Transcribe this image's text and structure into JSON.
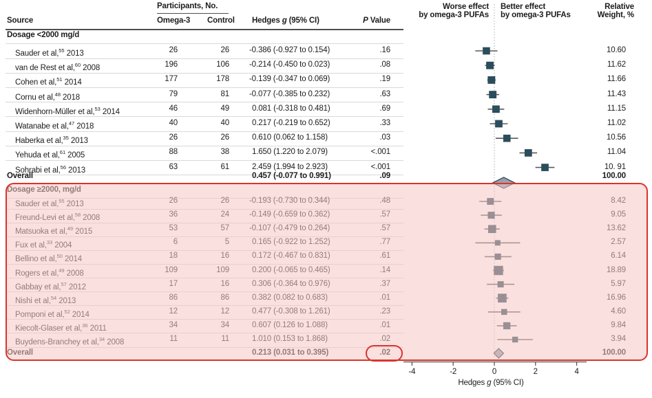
{
  "chart_data": {
    "type": "scatter",
    "variant": "forest-plot",
    "header": {
      "source": "Source",
      "participants": "Participants, No.",
      "omega3": "Omega-3",
      "control": "Control",
      "hedges": {
        "pre": "Hedges ",
        "it": "g",
        "post": " (95% CI)"
      },
      "pvalue": {
        "it": "P",
        "post": " Value"
      },
      "worse1": "Worse effect",
      "worse2": "by omega-3 PUFAs",
      "better1": "Better effect",
      "better2": "by omega-3 PUFAs",
      "relative1": "Relative",
      "relative2": "Weight, %"
    },
    "axis": {
      "ticks": [
        -4,
        -2,
        0,
        2,
        4
      ],
      "xlim": [
        -4.4,
        4.6
      ],
      "zero_line": "dotted",
      "title": {
        "pre": "Hedges ",
        "it": "g",
        "post": " (95% CI)"
      }
    },
    "colors": {
      "square": "#2b4d5c",
      "ci_line": "#5a5a5a",
      "diamond_fill": "#9aa0ab",
      "diamond_stroke": "#31505e",
      "highlight_red": "#d8352c",
      "separator": "#d9d9d9",
      "text": "#1c1c1c"
    },
    "groups": [
      {
        "label": "Dosage <2000 mg/d",
        "rows": [
          {
            "source": "Sauder et al,",
            "ref": "55",
            "year": "2013",
            "omega3": "26",
            "control": "26",
            "hedges": "-0.386 (-0.927 to 0.154)",
            "p": ".16",
            "weight": "10.60",
            "g": -0.386,
            "lo": -0.927,
            "hi": 0.154,
            "w": 10.6
          },
          {
            "source": "van de Rest et al,",
            "ref": "60",
            "year": "2008",
            "omega3": "196",
            "control": "106",
            "hedges": "-0.214 (-0.450 to 0.023)",
            "p": ".08",
            "weight": "11.62",
            "g": -0.214,
            "lo": -0.45,
            "hi": 0.023,
            "w": 11.62
          },
          {
            "source": "Cohen et al,",
            "ref": "51",
            "year": "2014",
            "omega3": "177",
            "control": "178",
            "hedges": "-0.139 (-0.347 to 0.069)",
            "p": ".19",
            "weight": "11.66",
            "g": -0.139,
            "lo": -0.347,
            "hi": 0.069,
            "w": 11.66
          },
          {
            "source": "Cornu et al,",
            "ref": "48",
            "year": "2018",
            "omega3": "79",
            "control": "81",
            "hedges": "-0.077 (-0.385 to 0.232)",
            "p": ".63",
            "weight": "11.43",
            "g": -0.077,
            "lo": -0.385,
            "hi": 0.232,
            "w": 11.43
          },
          {
            "source": "Widenhorn-Müller et al,",
            "ref": "53",
            "year": "2014",
            "omega3": "46",
            "control": "49",
            "hedges": "0.081 (-0.318 to 0.481)",
            "p": ".69",
            "weight": "11.15",
            "g": 0.081,
            "lo": -0.318,
            "hi": 0.481,
            "w": 11.15
          },
          {
            "source": "Watanabe et al,",
            "ref": "47",
            "year": "2018",
            "omega3": "40",
            "control": "40",
            "hedges": "0.217 (-0.219 to 0.652)",
            "p": ".33",
            "weight": "11.02",
            "g": 0.217,
            "lo": -0.219,
            "hi": 0.652,
            "w": 11.02
          },
          {
            "source": "Haberka et al,",
            "ref": "35",
            "year": "2013",
            "omega3": "26",
            "control": "26",
            "hedges": "0.610 (0.062 to 1.158)",
            "p": ".03",
            "weight": "10.56",
            "g": 0.61,
            "lo": 0.062,
            "hi": 1.158,
            "w": 10.56
          },
          {
            "source": "Yehuda et al,",
            "ref": "61",
            "year": "2005",
            "omega3": "88",
            "control": "38",
            "hedges": "1.650 (1.220 to 2.079)",
            "p": "<.001",
            "weight": "11.04",
            "g": 1.65,
            "lo": 1.22,
            "hi": 2.079,
            "w": 11.04
          },
          {
            "source": "Sohrabi et al,",
            "ref": "56",
            "year": "2013",
            "omega3": "63",
            "control": "61",
            "hedges": "2.459 (1.994 to 2.923)",
            "p": "<.001",
            "weight": "10. 91",
            "g": 2.459,
            "lo": 1.994,
            "hi": 2.923,
            "w": 10.91
          }
        ],
        "overall": {
          "label": "Overall",
          "hedges": "0.457 (-0.077 to 0.991)",
          "p": ".09",
          "weight": "100.00",
          "g": 0.457,
          "lo": -0.077,
          "hi": 0.991
        }
      },
      {
        "label": "Dosage ≥2000, mg/d",
        "rows": [
          {
            "source": "Sauder et al,",
            "ref": "55",
            "year": "2013",
            "omega3": "26",
            "control": "26",
            "hedges": "-0.193 (-0.730 to 0.344)",
            "p": ".48",
            "weight": "8.42",
            "g": -0.193,
            "lo": -0.73,
            "hi": 0.344,
            "w": 8.42
          },
          {
            "source": "Freund-Levi et al,",
            "ref": "58",
            "year": "2008",
            "omega3": "36",
            "control": "24",
            "hedges": "-0.149 (-0.659 to 0.362)",
            "p": ".57",
            "weight": "9.05",
            "g": -0.149,
            "lo": -0.659,
            "hi": 0.362,
            "w": 9.05
          },
          {
            "source": "Matsuoka et al,",
            "ref": "49",
            "year": "2015",
            "omega3": "53",
            "control": "57",
            "hedges": "-0.107 (-0.479 to 0.264)",
            "p": ".57",
            "weight": "13.62",
            "g": -0.107,
            "lo": -0.479,
            "hi": 0.264,
            "w": 13.62
          },
          {
            "source": "Fux et al,",
            "ref": "33",
            "year": "2004",
            "omega3": "6",
            "control": "5",
            "hedges": "0.165 (-0.922 to 1.252)",
            "p": ".77",
            "weight": "2.57",
            "g": 0.165,
            "lo": -0.922,
            "hi": 1.252,
            "w": 2.57
          },
          {
            "source": "Bellino et al,",
            "ref": "50",
            "year": "2014",
            "omega3": "18",
            "control": "16",
            "hedges": "0.172 (-0.467 to 0.831)",
            "p": ".61",
            "weight": "6.14",
            "g": 0.172,
            "lo": -0.467,
            "hi": 0.831,
            "w": 6.14
          },
          {
            "source": "Rogers et al,",
            "ref": "49",
            "year": "2008",
            "omega3": "109",
            "control": "109",
            "hedges": "0.200 (-0.065 to 0.465)",
            "p": ".14",
            "weight": "18.89",
            "g": 0.2,
            "lo": -0.065,
            "hi": 0.465,
            "w": 18.89
          },
          {
            "source": "Gabbay et al,",
            "ref": "57",
            "year": "2012",
            "omega3": "17",
            "control": "16",
            "hedges": "0.306 (-0.364 to 0.976)",
            "p": ".37",
            "weight": "5.97",
            "g": 0.306,
            "lo": -0.364,
            "hi": 0.976,
            "w": 5.97
          },
          {
            "source": "Nishi et al,",
            "ref": "54",
            "year": "2013",
            "omega3": "86",
            "control": "86",
            "hedges": "0.382 (0.082 to 0.683)",
            "p": ".01",
            "weight": "16.96",
            "g": 0.382,
            "lo": 0.082,
            "hi": 0.683,
            "w": 16.96
          },
          {
            "source": "Pomponi et al,",
            "ref": "52",
            "year": "2014",
            "omega3": "12",
            "control": "12",
            "hedges": "0.477 (-0.308 to 1.261)",
            "p": ".23",
            "weight": "4.60",
            "g": 0.477,
            "lo": -0.308,
            "hi": 1.261,
            "w": 4.6
          },
          {
            "source": "Kiecolt-Glaser et al,",
            "ref": "36",
            "year": "2011",
            "omega3": "34",
            "control": "34",
            "hedges": "0.607 (0.126 to 1.088)",
            "p": ".01",
            "weight": "9.84",
            "g": 0.607,
            "lo": 0.126,
            "hi": 1.088,
            "w": 9.84
          },
          {
            "source": "Buydens-Branchey et al,",
            "ref": "34",
            "year": "2008",
            "omega3": "11",
            "control": "11",
            "hedges": "1.010 (0.153 to 1.868)",
            "p": ".02",
            "weight": "3.94",
            "g": 1.01,
            "lo": 0.153,
            "hi": 1.868,
            "w": 3.94
          }
        ],
        "overall": {
          "label": "Overall",
          "hedges": "0.213 (0.031 to 0.395)",
          "p": ".02",
          "weight": "100.00",
          "g": 0.213,
          "lo": 0.031,
          "hi": 0.395
        }
      }
    ]
  }
}
